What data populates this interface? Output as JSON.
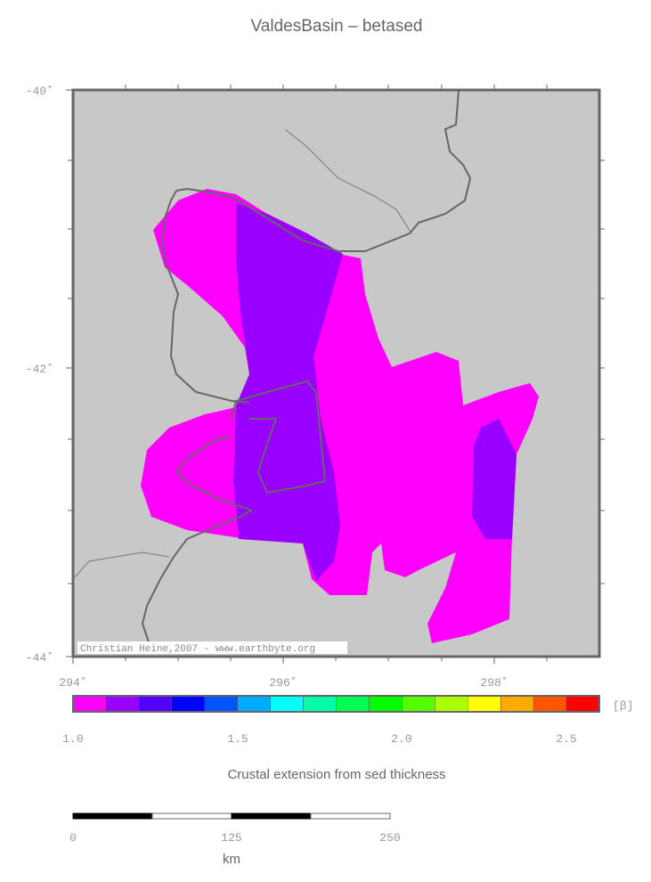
{
  "header": {
    "title": "ValdesBasin – betased"
  },
  "map": {
    "lat_labels": [
      "-40˚",
      "-42˚",
      "-44˚"
    ],
    "lon_labels": [
      "294˚",
      "296˚",
      "298˚"
    ],
    "credit": "Christian Heine,2007 - www.earthbyte.org"
  },
  "colorbar": {
    "tick_labels": [
      "1.0",
      "1.5",
      "2.0",
      "2.5"
    ],
    "unit": "[β]",
    "caption": "Crustal extension from sed thickness"
  },
  "scale_bar": {
    "labels": [
      "0",
      "125",
      "250"
    ],
    "unit": "km"
  }
}
